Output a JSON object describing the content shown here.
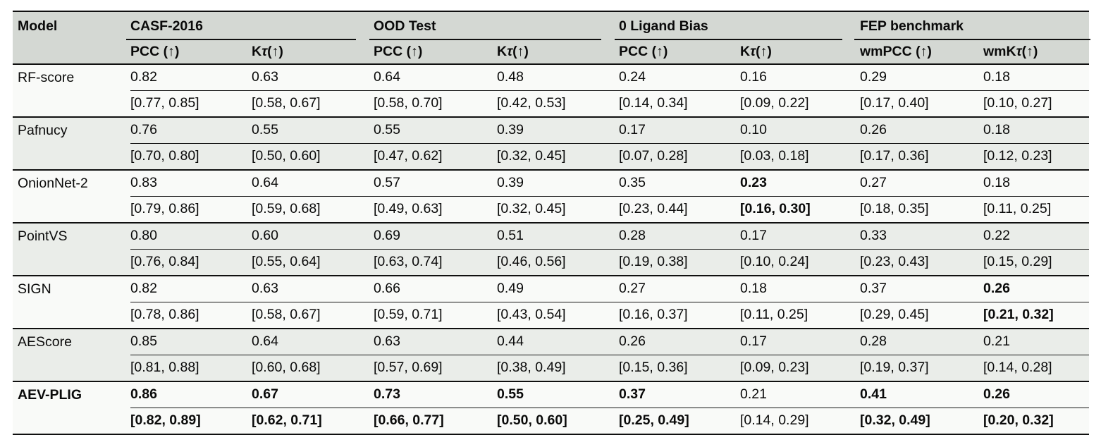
{
  "table": {
    "model_header": "Model",
    "benchmarks": [
      {
        "label": "CASF-2016",
        "metrics": [
          "PCC (↑)",
          "Kτ (↑)"
        ]
      },
      {
        "label": "OOD Test",
        "metrics": [
          "PCC (↑)",
          "Kτ (↑)"
        ]
      },
      {
        "label": "0 Ligand Bias",
        "metrics": [
          "PCC (↑)",
          "Kτ (↑)"
        ]
      },
      {
        "label": "FEP benchmark",
        "metrics": [
          "wmPCC (↑)",
          "wmKτ (↑)"
        ]
      }
    ],
    "rows": [
      {
        "model": "RF-score",
        "bold_model": false,
        "values": [
          "0.82",
          "0.63",
          "0.64",
          "0.48",
          "0.24",
          "0.16",
          "0.29",
          "0.18"
        ],
        "cis": [
          "[0.77, 0.85]",
          "[0.58, 0.67]",
          "[0.58, 0.70]",
          "[0.42, 0.53]",
          "[0.14, 0.34]",
          "[0.09, 0.22]",
          "[0.17, 0.40]",
          "[0.10, 0.27]"
        ],
        "bold": [
          false,
          false,
          false,
          false,
          false,
          false,
          false,
          false
        ]
      },
      {
        "model": "Pafnucy",
        "bold_model": false,
        "values": [
          "0.76",
          "0.55",
          "0.55",
          "0.39",
          "0.17",
          "0.10",
          "0.26",
          "0.18"
        ],
        "cis": [
          "[0.70, 0.80]",
          "[0.50, 0.60]",
          "[0.47, 0.62]",
          "[0.32, 0.45]",
          "[0.07, 0.28]",
          "[0.03, 0.18]",
          "[0.17, 0.36]",
          "[0.12, 0.23]"
        ],
        "bold": [
          false,
          false,
          false,
          false,
          false,
          false,
          false,
          false
        ]
      },
      {
        "model": "OnionNet-2",
        "bold_model": false,
        "values": [
          "0.83",
          "0.64",
          "0.57",
          "0.39",
          "0.35",
          "0.23",
          "0.27",
          "0.18"
        ],
        "cis": [
          "[0.79, 0.86]",
          "[0.59, 0.68]",
          "[0.49, 0.63]",
          "[0.32, 0.45]",
          "[0.23, 0.44]",
          "[0.16, 0.30]",
          "[0.18, 0.35]",
          "[0.11, 0.25]"
        ],
        "bold": [
          false,
          false,
          false,
          false,
          false,
          true,
          false,
          false
        ]
      },
      {
        "model": "PointVS",
        "bold_model": false,
        "values": [
          "0.80",
          "0.60",
          "0.69",
          "0.51",
          "0.28",
          "0.17",
          "0.33",
          "0.22"
        ],
        "cis": [
          "[0.76, 0.84]",
          "[0.55, 0.64]",
          "[0.63, 0.74]",
          "[0.46, 0.56]",
          "[0.19, 0.38]",
          "[0.10, 0.24]",
          "[0.23, 0.43]",
          "[0.15, 0.29]"
        ],
        "bold": [
          false,
          false,
          false,
          false,
          false,
          false,
          false,
          false
        ]
      },
      {
        "model": "SIGN",
        "bold_model": false,
        "values": [
          "0.82",
          "0.63",
          "0.66",
          "0.49",
          "0.27",
          "0.18",
          "0.37",
          "0.26"
        ],
        "cis": [
          "[0.78, 0.86]",
          "[0.58, 0.67]",
          "[0.59, 0.71]",
          "[0.43, 0.54]",
          "[0.16, 0.37]",
          "[0.11, 0.25]",
          "[0.29, 0.45]",
          "[0.21, 0.32]"
        ],
        "bold": [
          false,
          false,
          false,
          false,
          false,
          false,
          false,
          true
        ]
      },
      {
        "model": "AEScore",
        "bold_model": false,
        "values": [
          "0.85",
          "0.64",
          "0.63",
          "0.44",
          "0.26",
          "0.17",
          "0.28",
          "0.21"
        ],
        "cis": [
          "[0.81, 0.88]",
          "[0.60, 0.68]",
          "[0.57, 0.69]",
          "[0.38, 0.49]",
          "[0.15, 0.36]",
          "[0.09, 0.23]",
          "[0.19, 0.37]",
          "[0.14, 0.28]"
        ],
        "bold": [
          false,
          false,
          false,
          false,
          false,
          false,
          false,
          false
        ]
      },
      {
        "model": "AEV-PLIG",
        "bold_model": true,
        "values": [
          "0.86",
          "0.67",
          "0.73",
          "0.55",
          "0.37",
          "0.21",
          "0.41",
          "0.26"
        ],
        "cis": [
          "[0.82, 0.89]",
          "[0.62, 0.71]",
          "[0.66, 0.77]",
          "[0.50, 0.60]",
          "[0.25, 0.49]",
          "[0.14, 0.29]",
          "[0.32, 0.49]",
          "[0.20, 0.32]"
        ],
        "bold": [
          true,
          true,
          true,
          true,
          true,
          false,
          true,
          true
        ]
      }
    ]
  },
  "colors": {
    "header_bg": "#d4d8d3",
    "row_light": "#f9faf8",
    "row_shaded": "#eaede9",
    "rule": "#101010",
    "text": "#0a0a0a"
  }
}
